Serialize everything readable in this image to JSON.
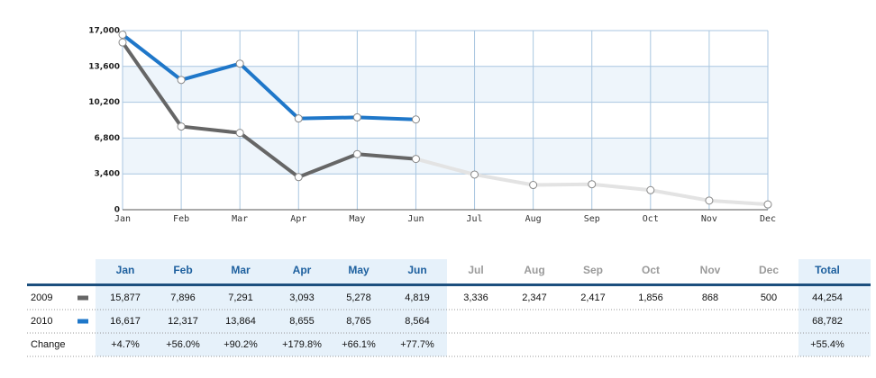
{
  "chart_data": {
    "type": "line",
    "categories": [
      "Jan",
      "Feb",
      "Mar",
      "Apr",
      "May",
      "Jun",
      "Jul",
      "Aug",
      "Sep",
      "Oct",
      "Nov",
      "Dec"
    ],
    "series": [
      {
        "name": "2009",
        "color": "#666666",
        "future_color": "#e3e3e3",
        "values": [
          15877,
          7896,
          7291,
          3093,
          5278,
          4819,
          3336,
          2347,
          2417,
          1856,
          868,
          500
        ],
        "value_labels": [
          "15,877",
          "7,896",
          "7,291",
          "3,093",
          "5,278",
          "4,819",
          "3,336",
          "2,347",
          "2,417",
          "1,856",
          "868",
          "500"
        ]
      },
      {
        "name": "2010",
        "color": "#1f77c9",
        "values": [
          16617,
          12317,
          13864,
          8655,
          8765,
          8564,
          null,
          null,
          null,
          null,
          null,
          null
        ],
        "value_labels": [
          "16,617",
          "12,317",
          "13,864",
          "8,655",
          "8,765",
          "8,564",
          null,
          null,
          null,
          null,
          null,
          null
        ]
      }
    ],
    "ylim": [
      0,
      17000
    ],
    "yticks": [
      0,
      {
        "value": 3400,
        "label": "3,400"
      },
      {
        "value": 6800,
        "label": "6,800"
      },
      {
        "value": 10200,
        "label": "10,200"
      },
      {
        "value": 13600,
        "label": "13,600"
      },
      {
        "value": 17000,
        "label": "17,000"
      }
    ],
    "grid": true
  },
  "table": {
    "total_header": "Total",
    "totals": [
      "44,254",
      "68,782"
    ],
    "change_label": "Change",
    "changes": [
      "+4.7%",
      "+56.0%",
      "+90.2%",
      "+179.8%",
      "+66.1%",
      "+77.7%"
    ],
    "total_change": "+55.4%"
  }
}
